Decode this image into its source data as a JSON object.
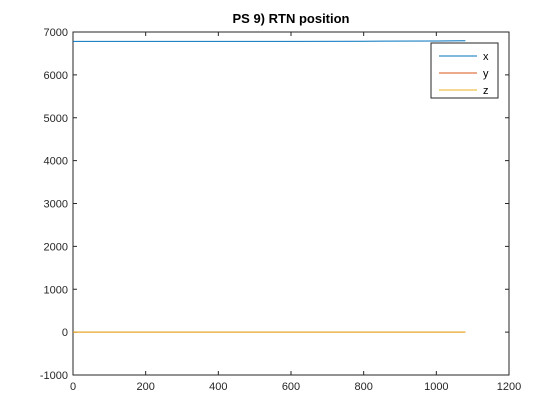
{
  "chart_data": {
    "type": "line",
    "title": "PS 9) RTN position",
    "xlabel": "",
    "ylabel": "",
    "xlim": [
      0,
      1200
    ],
    "ylim": [
      -1000,
      7000
    ],
    "xticks": [
      0,
      200,
      400,
      600,
      800,
      1000,
      1200
    ],
    "yticks": [
      -1000,
      0,
      1000,
      2000,
      3000,
      4000,
      5000,
      6000,
      7000
    ],
    "grid": false,
    "legend_position": "top-right",
    "series": [
      {
        "name": "x",
        "color": "#0072BD",
        "x": [
          0,
          200,
          400,
          600,
          800,
          1000,
          1080
        ],
        "y": [
          6780,
          6780,
          6780,
          6780,
          6785,
          6790,
          6795
        ]
      },
      {
        "name": "y",
        "color": "#D95319",
        "x": [
          0,
          200,
          400,
          600,
          800,
          1000,
          1080
        ],
        "y": [
          0,
          0,
          0,
          0,
          0,
          0,
          0
        ]
      },
      {
        "name": "z",
        "color": "#EDB120",
        "x": [
          0,
          200,
          400,
          600,
          800,
          1000,
          1080
        ],
        "y": [
          0,
          0,
          0,
          0,
          0,
          0,
          0
        ]
      }
    ]
  }
}
